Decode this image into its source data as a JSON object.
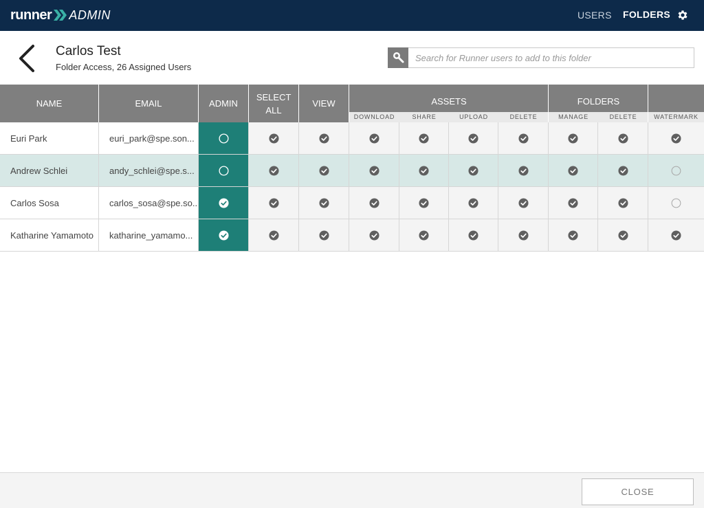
{
  "app": {
    "logo_runner": "runner",
    "logo_admin": "ADMIN",
    "nav": {
      "users": "USERS",
      "folders": "FOLDERS"
    }
  },
  "header": {
    "title": "Carlos Test",
    "subtitle": "Folder Access, 26 Assigned Users",
    "search_placeholder": "Search for Runner users to add to this folder"
  },
  "columns": {
    "name": "NAME",
    "email": "EMAIL",
    "admin": "ADMIN",
    "select_all": "SELECT ALL",
    "view": "VIEW",
    "assets": "ASSETS",
    "folders": "FOLDERS",
    "sub": {
      "download": "DOWNLOAD",
      "share": "SHARE",
      "upload": "UPLOAD",
      "asset_delete": "DELETE",
      "manage": "MANAGE",
      "folder_delete": "DELETE",
      "watermark": "WATERMARK"
    }
  },
  "users": [
    {
      "name": "Euri Park",
      "email": "euri_park@spe.son...",
      "admin": false,
      "select_all": true,
      "view": true,
      "download": true,
      "share": true,
      "upload": true,
      "asset_delete": true,
      "manage": true,
      "folder_delete": true,
      "watermark": true,
      "highlight": false
    },
    {
      "name": "Andrew Schlei",
      "email": "andy_schlei@spe.s...",
      "admin": false,
      "select_all": true,
      "view": true,
      "download": true,
      "share": true,
      "upload": true,
      "asset_delete": true,
      "manage": true,
      "folder_delete": true,
      "watermark": false,
      "highlight": true
    },
    {
      "name": "Carlos Sosa",
      "email": "carlos_sosa@spe.so...",
      "admin": true,
      "select_all": true,
      "view": true,
      "download": true,
      "share": true,
      "upload": true,
      "asset_delete": true,
      "manage": true,
      "folder_delete": true,
      "watermark": false,
      "highlight": false
    },
    {
      "name": "Katharine Yamamoto",
      "email": "katharine_yamamo...",
      "admin": true,
      "select_all": true,
      "view": true,
      "download": true,
      "share": true,
      "upload": true,
      "asset_delete": true,
      "manage": true,
      "folder_delete": true,
      "watermark": true,
      "highlight": false
    }
  ],
  "footer": {
    "close_label": "CLOSE"
  },
  "colors": {
    "topbar": "#0d2a4a",
    "admin_column": "#1e7f77",
    "highlight_row": "#d7e8e6",
    "header_gray": "#7f7f7f"
  }
}
